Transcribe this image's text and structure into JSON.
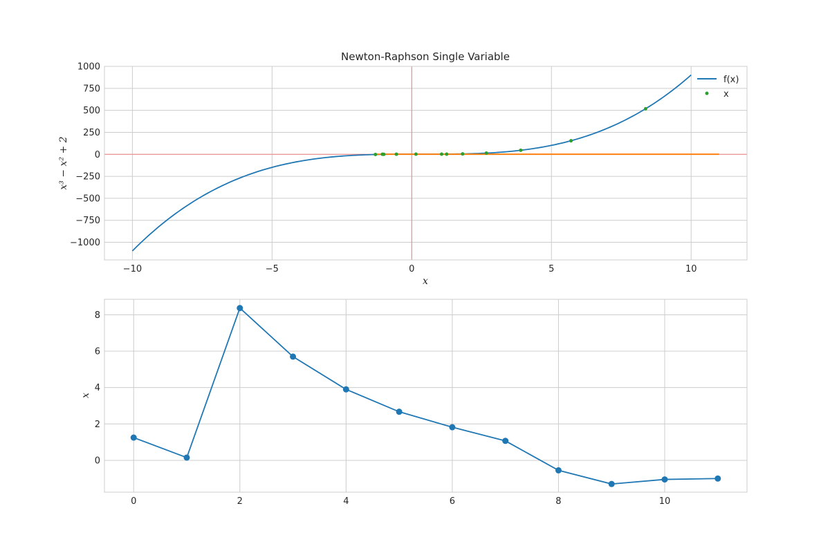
{
  "chart_data": [
    {
      "type": "line",
      "title": "Newton-Raphson Single Variable",
      "xlabel": "x",
      "ylabel": "x³ − x² + 2",
      "xlim": [
        -11,
        12
      ],
      "ylim": [
        -1200,
        1000
      ],
      "xticks": [
        -10,
        -5,
        0,
        5,
        10
      ],
      "yticks": [
        -1000,
        -750,
        -500,
        -250,
        0,
        250,
        500,
        750,
        1000
      ],
      "xtick_labels": [
        "−10",
        "−5",
        "0",
        "5",
        "10"
      ],
      "ytick_labels": [
        "−1000",
        "−750",
        "−500",
        "−250",
        "0",
        "250",
        "500",
        "750",
        "1000"
      ],
      "grid": true,
      "legend": "top-right",
      "reference_lines": {
        "x": 0,
        "y": 0,
        "color": "#f08080"
      },
      "series": [
        {
          "name": "f(x)",
          "kind": "line",
          "color": "#1f77b4",
          "function": "x^3 - x^2 + 2",
          "x_range": [
            -10,
            10
          ]
        },
        {
          "kind": "line",
          "color": "#ff7f0e",
          "x": [
            -1.3,
            11
          ],
          "y": [
            1,
            1
          ]
        },
        {
          "name": "x",
          "kind": "scatter",
          "color": "#2ca02c",
          "x": [
            1.25,
            0.15,
            8.37,
            5.7,
            3.9,
            2.67,
            1.82,
            1.07,
            -0.55,
            -1.3,
            -1.05,
            -1.0
          ],
          "y": [
            2.39,
            1.98,
            518,
            154,
            46,
            13.9,
            4.7,
            2.08,
            1.53,
            -1.9,
            0.74,
            0.0
          ]
        }
      ]
    },
    {
      "type": "line",
      "title": "",
      "xlabel": "",
      "ylabel": "x",
      "xlim": [
        -0.55,
        11.55
      ],
      "ylim": [
        -1.75,
        8.85
      ],
      "xticks": [
        0,
        2,
        4,
        6,
        8,
        10
      ],
      "yticks": [
        0,
        2,
        4,
        6,
        8
      ],
      "xtick_labels": [
        "0",
        "2",
        "4",
        "6",
        "8",
        "10"
      ],
      "ytick_labels": [
        "0",
        "2",
        "4",
        "6",
        "8"
      ],
      "grid": true,
      "series": [
        {
          "kind": "line-marker",
          "color": "#1f77b4",
          "x": [
            0,
            1,
            2,
            3,
            4,
            5,
            6,
            7,
            8,
            9,
            10,
            11
          ],
          "y": [
            1.25,
            0.15,
            8.37,
            5.7,
            3.9,
            2.67,
            1.82,
            1.07,
            -0.55,
            -1.3,
            -1.05,
            -1.0
          ]
        }
      ]
    }
  ]
}
